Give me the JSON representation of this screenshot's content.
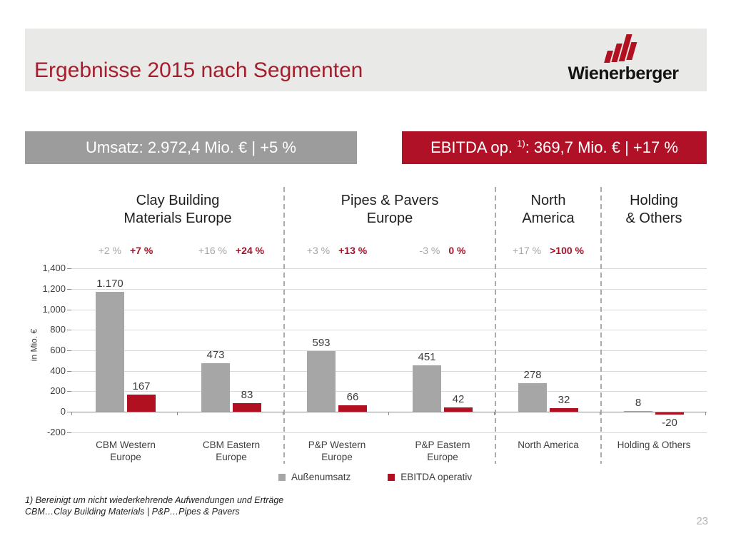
{
  "header": {
    "title": "Ergebnisse 2015 nach Segmenten",
    "logo_text": "Wienerberger"
  },
  "banners": {
    "umsatz": "Umsatz: 2.972,4 Mio. € | +5 %",
    "ebitda_prefix": "EBITDA op. ",
    "ebitda_sup": "1)",
    "ebitda_suffix": ": 369,7 Mio. € | +17 %"
  },
  "colors": {
    "revenue_bar": "#a6a6a6",
    "ebitda_bar": "#b01020",
    "banner_red": "#b11126",
    "banner_gray": "#9c9c9c",
    "title_red": "#a41e2d"
  },
  "chart_data": {
    "type": "bar",
    "unit_label": "in Mio. €",
    "y_axis": {
      "min": -200,
      "max": 1400,
      "step": 200,
      "tick_labels": [
        "1,400",
        "1,200",
        "1,000",
        "800",
        "600",
        "400",
        "200",
        "0",
        "-200"
      ]
    },
    "series": [
      {
        "name": "Außenumsatz",
        "color": "#a6a6a6"
      },
      {
        "name": "EBITDA operativ",
        "color": "#b01020"
      }
    ],
    "segments": [
      {
        "title": [
          "Clay Building",
          "Materials Europe"
        ],
        "group_indexes": [
          0,
          1
        ]
      },
      {
        "title": [
          "Pipes & Pavers",
          "Europe"
        ],
        "group_indexes": [
          2,
          3
        ]
      },
      {
        "title": [
          "North",
          "America"
        ],
        "group_indexes": [
          4
        ]
      },
      {
        "title": [
          "Holding",
          "& Others"
        ],
        "group_indexes": [
          5
        ]
      }
    ],
    "groups": [
      {
        "label": [
          "CBM Western",
          "Europe"
        ],
        "revenue": 1170,
        "revenue_label": "1.170",
        "ebitda": 167,
        "ebitda_label": "167",
        "revenue_growth": "+2 %",
        "ebitda_growth": "+7 %"
      },
      {
        "label": [
          "CBM Eastern",
          "Europe"
        ],
        "revenue": 473,
        "revenue_label": "473",
        "ebitda": 83,
        "ebitda_label": "83",
        "revenue_growth": "+16 %",
        "ebitda_growth": "+24 %"
      },
      {
        "label": [
          "P&P Western",
          "Europe"
        ],
        "revenue": 593,
        "revenue_label": "593",
        "ebitda": 66,
        "ebitda_label": "66",
        "revenue_growth": "+3 %",
        "ebitda_growth": "+13 %"
      },
      {
        "label": [
          "P&P Eastern",
          "Europe"
        ],
        "revenue": 451,
        "revenue_label": "451",
        "ebitda": 42,
        "ebitda_label": "42",
        "revenue_growth": "-3 %",
        "ebitda_growth": "0 %"
      },
      {
        "label": [
          "North America"
        ],
        "revenue": 278,
        "revenue_label": "278",
        "ebitda": 32,
        "ebitda_label": "32",
        "revenue_growth": "+17 %",
        "ebitda_growth": ">100 %"
      },
      {
        "label": [
          "Holding & Others"
        ],
        "revenue": 8,
        "revenue_label": "8",
        "ebitda": -20,
        "ebitda_label": "-20",
        "revenue_growth": null,
        "ebitda_growth": null
      }
    ]
  },
  "footnotes": [
    "1) Bereinigt um nicht wiederkehrende Aufwendungen und Erträge",
    "CBM…Clay Building Materials | P&P…Pipes & Pavers"
  ],
  "page_number": "23"
}
